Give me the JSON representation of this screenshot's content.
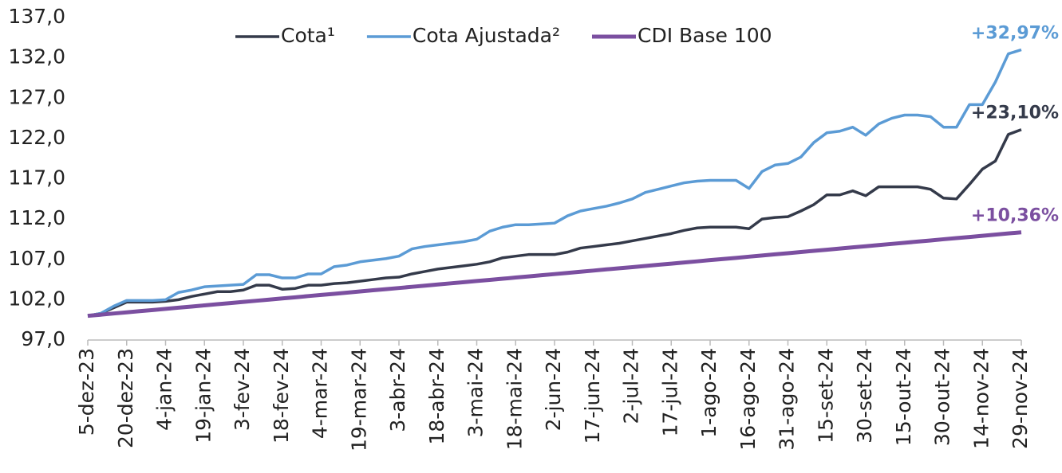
{
  "chart_data": {
    "type": "line",
    "categories": [
      "5-dez-23",
      null,
      null,
      "20-dez-23",
      null,
      null,
      "4-jan-24",
      null,
      null,
      "19-jan-24",
      null,
      null,
      "3-fev-24",
      null,
      null,
      "18-fev-24",
      null,
      null,
      "4-mar-24",
      null,
      null,
      "19-mar-24",
      null,
      null,
      "3-abr-24",
      null,
      null,
      "18-abr-24",
      null,
      null,
      "3-mai-24",
      null,
      null,
      "18-mai-24",
      null,
      null,
      "2-jun-24",
      null,
      null,
      "17-jun-24",
      null,
      null,
      "2-jul-24",
      null,
      null,
      "17-jul-24",
      null,
      null,
      "1-ago-24",
      null,
      null,
      "16-ago-24",
      null,
      null,
      "31-ago-24",
      null,
      null,
      "15-set-24",
      null,
      null,
      "30-set-24",
      null,
      null,
      "15-out-24",
      null,
      null,
      "30-out-24",
      null,
      null,
      "14-nov-24",
      null,
      null,
      "29-nov-24"
    ],
    "series": [
      {
        "name": "Cota¹",
        "color": "#343a4a",
        "values": [
          100.0,
          100.3,
          101.0,
          101.7,
          101.7,
          101.7,
          101.8,
          102.0,
          102.4,
          102.7,
          103.0,
          103.0,
          103.2,
          103.8,
          103.8,
          103.3,
          103.4,
          103.8,
          103.8,
          104.0,
          104.1,
          104.3,
          104.5,
          104.7,
          104.8,
          105.2,
          105.5,
          105.8,
          106.0,
          106.2,
          106.4,
          106.7,
          107.2,
          107.4,
          107.6,
          107.6,
          107.6,
          107.9,
          108.4,
          108.6,
          108.8,
          109.0,
          109.3,
          109.6,
          109.9,
          110.2,
          110.6,
          110.9,
          111.0,
          111.0,
          111.0,
          110.8,
          112.0,
          112.2,
          112.3,
          113.0,
          113.8,
          115.0,
          115.0,
          115.5,
          114.9,
          116.0,
          116.0,
          116.0,
          116.0,
          115.7,
          114.6,
          114.5,
          116.3,
          118.2,
          119.2,
          122.5,
          123.1
        ]
      },
      {
        "name": "Cota Ajustada²",
        "color": "#5b9bd5",
        "values": [
          100.0,
          100.3,
          101.2,
          101.9,
          101.9,
          101.9,
          102.0,
          102.9,
          103.2,
          103.6,
          103.7,
          103.8,
          103.9,
          105.1,
          105.1,
          104.7,
          104.7,
          105.2,
          105.2,
          106.1,
          106.3,
          106.7,
          106.9,
          107.1,
          107.4,
          108.3,
          108.6,
          108.8,
          109.0,
          109.2,
          109.5,
          110.5,
          111.0,
          111.3,
          111.3,
          111.4,
          111.5,
          112.4,
          113.0,
          113.3,
          113.6,
          114.0,
          114.5,
          115.3,
          115.7,
          116.1,
          116.5,
          116.7,
          116.8,
          116.8,
          116.8,
          115.8,
          117.9,
          118.7,
          118.9,
          119.7,
          121.5,
          122.7,
          122.9,
          123.4,
          122.4,
          123.8,
          124.5,
          124.9,
          124.9,
          124.7,
          123.4,
          123.4,
          126.2,
          126.2,
          129.0,
          132.5,
          133.0
        ]
      },
      {
        "name": "CDI Base 100",
        "color": "#7b4fa0",
        "values": [
          100.0,
          100.14,
          100.29,
          100.43,
          100.58,
          100.72,
          100.86,
          101.01,
          101.15,
          101.3,
          101.44,
          101.58,
          101.73,
          101.87,
          102.01,
          102.16,
          102.3,
          102.45,
          102.59,
          102.73,
          102.88,
          103.02,
          103.17,
          103.31,
          103.45,
          103.6,
          103.74,
          103.89,
          104.03,
          104.17,
          104.32,
          104.46,
          104.6,
          104.75,
          104.89,
          105.04,
          105.18,
          105.32,
          105.47,
          105.61,
          105.76,
          105.9,
          106.04,
          106.19,
          106.33,
          106.47,
          106.62,
          106.76,
          106.91,
          107.05,
          107.19,
          107.34,
          107.48,
          107.63,
          107.77,
          107.91,
          108.06,
          108.2,
          108.35,
          108.49,
          108.63,
          108.78,
          108.92,
          109.06,
          109.21,
          109.35,
          109.5,
          109.64,
          109.78,
          109.93,
          110.07,
          110.22,
          110.36
        ]
      }
    ],
    "annotations": [
      "+23,10%",
      "+32,97%",
      "+10,36%"
    ],
    "ylim": [
      97,
      137
    ],
    "yticks": [
      {
        "value": 97,
        "label": "97,0"
      },
      {
        "value": 102,
        "label": "102,0"
      },
      {
        "value": 107,
        "label": "107,0"
      },
      {
        "value": 112,
        "label": "112,0"
      },
      {
        "value": 117,
        "label": "117,0"
      },
      {
        "value": 122,
        "label": "122,0"
      },
      {
        "value": 127,
        "label": "127,0"
      },
      {
        "value": 132,
        "label": "132,0"
      },
      {
        "value": 137,
        "label": "137,0"
      }
    ],
    "legend": "top"
  }
}
